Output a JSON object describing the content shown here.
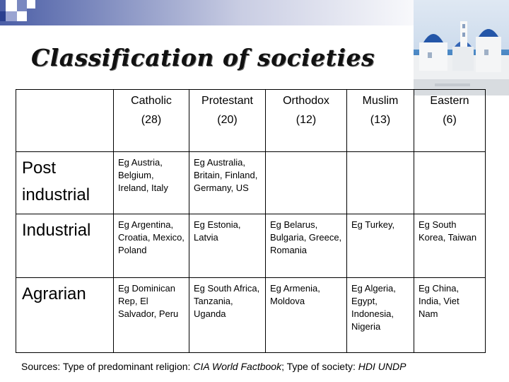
{
  "title": "Classification of societies",
  "columns": [
    {
      "name": "Catholic",
      "count": "(28)"
    },
    {
      "name": "Protestant",
      "count": "(20)"
    },
    {
      "name": "Orthodox",
      "count": "(12)"
    },
    {
      "name": "Muslim",
      "count": "(13)"
    },
    {
      "name": "Eastern",
      "count": "(6)"
    }
  ],
  "rows": [
    {
      "label": [
        "Post",
        "industrial"
      ],
      "cells": [
        "Eg Austria, Belgium, Ireland, Italy",
        "Eg Australia, Britain, Finland, Germany, US",
        "",
        "",
        ""
      ]
    },
    {
      "label": [
        "Industrial"
      ],
      "cells": [
        "Eg Argentina, Croatia, Mexico, Poland",
        "Eg Estonia, Latvia",
        "Eg Belarus, Bulgaria, Greece, Romania",
        "Eg Turkey,",
        "Eg South Korea, Taiwan"
      ]
    },
    {
      "label": [
        "Agrarian"
      ],
      "cells": [
        "Eg Dominican Rep, El Salvador, Peru",
        "Eg South Africa, Tanzania, Uganda",
        "Eg Armenia, Moldova",
        "Eg Algeria, Egypt, Indonesia, Nigeria",
        "Eg China, India, Viet Nam"
      ]
    }
  ],
  "sources": {
    "prefix": "Sources: Type of predominant religion: ",
    "religion_source": "CIA World Factbook",
    "middle": "; Type of society: ",
    "society_source": "HDI UNDP"
  },
  "colors": {
    "strip_dark": "#2a3f8f",
    "strip_light": "#c9cde3",
    "sea": "#3a78b8",
    "dome": "#2456a8"
  },
  "icons": {
    "header_photo": "santorini-photo-icon"
  }
}
